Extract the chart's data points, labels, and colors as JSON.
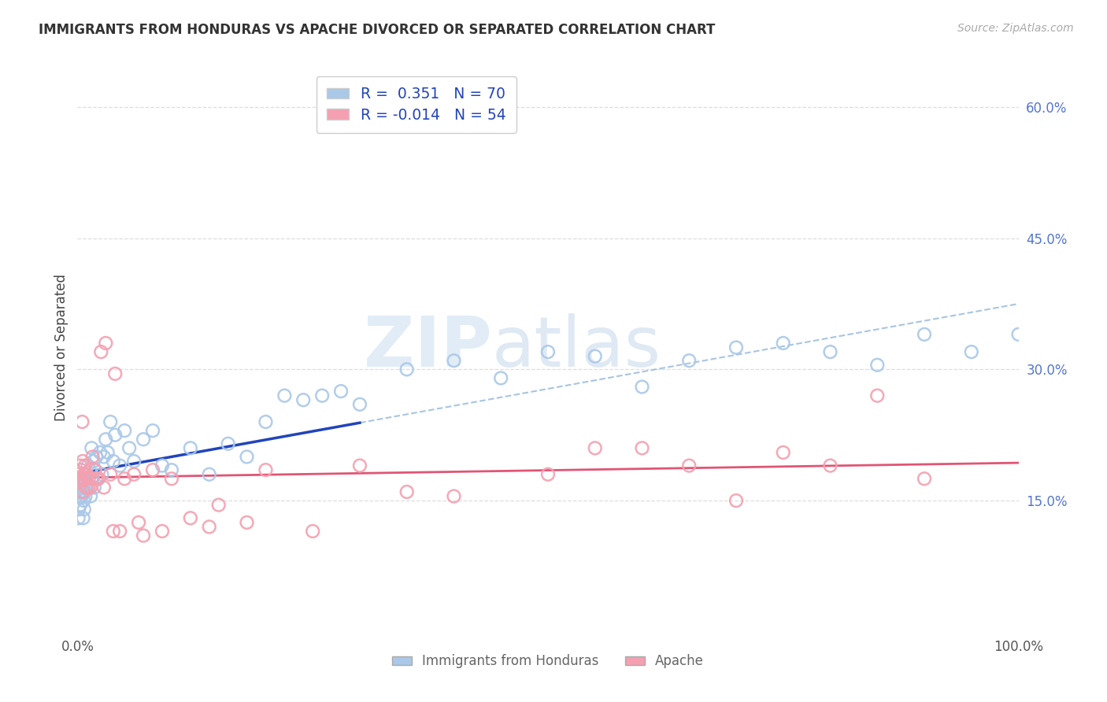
{
  "title": "IMMIGRANTS FROM HONDURAS VS APACHE DIVORCED OR SEPARATED CORRELATION CHART",
  "source": "Source: ZipAtlas.com",
  "ylabel": "Divorced or Separated",
  "watermark_zip": "ZIP",
  "watermark_atlas": "atlas",
  "blue_color": "#aac8e8",
  "blue_line_color": "#2244bb",
  "blue_dash_color": "#99bbdd",
  "pink_color": "#f4a0b0",
  "pink_line_color": "#e05575",
  "legend_blue_label": "R =  0.351   N = 70",
  "legend_pink_label": "R = -0.014   N = 54",
  "bottom_label1": "Immigrants from Honduras",
  "bottom_label2": "Apache",
  "xlim": [
    0,
    100
  ],
  "ylim": [
    0.0,
    0.65
  ],
  "yticks": [
    0.15,
    0.3,
    0.45,
    0.6
  ],
  "ytick_labels": [
    "15.0%",
    "30.0%",
    "45.0%",
    "60.0%"
  ],
  "xtick_labels": [
    "0.0%",
    "100.0%"
  ],
  "grid_color": "#dddddd",
  "title_color": "#333333",
  "tick_color": "#5577cc",
  "blue_x": [
    0.1,
    0.15,
    0.2,
    0.25,
    0.3,
    0.35,
    0.4,
    0.45,
    0.5,
    0.55,
    0.6,
    0.65,
    0.7,
    0.75,
    0.8,
    0.85,
    0.9,
    0.95,
    1.0,
    1.1,
    1.2,
    1.3,
    1.4,
    1.5,
    1.6,
    1.7,
    1.8,
    1.9,
    2.0,
    2.2,
    2.4,
    2.6,
    2.8,
    3.0,
    3.2,
    3.5,
    3.8,
    4.0,
    4.5,
    5.0,
    5.5,
    6.0,
    7.0,
    8.0,
    9.0,
    10.0,
    12.0,
    14.0,
    16.0,
    18.0,
    20.0,
    22.0,
    24.0,
    26.0,
    28.0,
    30.0,
    35.0,
    40.0,
    45.0,
    50.0,
    55.0,
    60.0,
    65.0,
    70.0,
    75.0,
    80.0,
    85.0,
    90.0,
    95.0,
    100.0
  ],
  "blue_y": [
    0.13,
    0.14,
    0.155,
    0.16,
    0.145,
    0.17,
    0.16,
    0.155,
    0.165,
    0.175,
    0.13,
    0.15,
    0.14,
    0.175,
    0.16,
    0.155,
    0.17,
    0.18,
    0.175,
    0.19,
    0.165,
    0.185,
    0.155,
    0.21,
    0.175,
    0.195,
    0.165,
    0.185,
    0.2,
    0.175,
    0.205,
    0.18,
    0.2,
    0.22,
    0.205,
    0.24,
    0.195,
    0.225,
    0.19,
    0.23,
    0.21,
    0.195,
    0.22,
    0.23,
    0.19,
    0.185,
    0.21,
    0.18,
    0.215,
    0.2,
    0.24,
    0.27,
    0.265,
    0.27,
    0.275,
    0.26,
    0.3,
    0.31,
    0.29,
    0.32,
    0.315,
    0.28,
    0.31,
    0.325,
    0.33,
    0.32,
    0.305,
    0.34,
    0.32,
    0.34
  ],
  "pink_x": [
    0.1,
    0.2,
    0.3,
    0.4,
    0.5,
    0.6,
    0.7,
    0.8,
    0.9,
    1.0,
    1.2,
    1.4,
    1.6,
    1.8,
    2.0,
    2.5,
    3.0,
    3.5,
    4.0,
    5.0,
    6.0,
    7.0,
    8.0,
    10.0,
    12.0,
    15.0,
    20.0,
    25.0,
    30.0,
    35.0,
    40.0,
    50.0,
    60.0,
    70.0,
    80.0,
    90.0,
    0.15,
    0.35,
    0.55,
    0.75,
    1.1,
    1.5,
    2.2,
    2.8,
    3.8,
    4.5,
    6.5,
    9.0,
    14.0,
    18.0,
    55.0,
    65.0,
    75.0,
    85.0
  ],
  "pink_y": [
    0.18,
    0.175,
    0.19,
    0.185,
    0.24,
    0.16,
    0.175,
    0.19,
    0.165,
    0.18,
    0.175,
    0.165,
    0.2,
    0.185,
    0.175,
    0.32,
    0.33,
    0.18,
    0.295,
    0.175,
    0.18,
    0.11,
    0.185,
    0.175,
    0.13,
    0.145,
    0.185,
    0.115,
    0.19,
    0.16,
    0.155,
    0.18,
    0.21,
    0.15,
    0.19,
    0.175,
    0.175,
    0.175,
    0.195,
    0.18,
    0.165,
    0.175,
    0.175,
    0.165,
    0.115,
    0.115,
    0.125,
    0.115,
    0.12,
    0.125,
    0.21,
    0.19,
    0.205,
    0.27
  ]
}
